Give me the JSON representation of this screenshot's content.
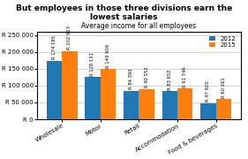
{
  "chart_data": {
    "type": "bar",
    "title": "But employees in those three divisions earn the lowest salaries",
    "subtitle": "Average income for all employees",
    "categories": [
      "Wholesale",
      "Motor",
      "Retail",
      "Accommodation",
      "Food & beverages"
    ],
    "series": [
      {
        "name": "2012",
        "values": [
          174185,
          126151,
          84393,
          83652,
          47920
        ],
        "value_labels": [
          "R 174 185",
          "R 126 151",
          "R 84 393",
          "R 83 652",
          "R 47 920"
        ]
      },
      {
        "name": "2015",
        "values": [
          202923,
          149909,
          90552,
          91746,
          60161
        ],
        "value_labels": [
          "R 202 923",
          "R 149 909",
          "R 90 552",
          "R 91 746",
          "R 60 161"
        ]
      }
    ],
    "ylim": [
      0,
      260000
    ],
    "yticks": [
      {
        "value": 0,
        "label": "R 0"
      },
      {
        "value": 50000,
        "label": "R 50 000"
      },
      {
        "value": 100000,
        "label": "R 100 000"
      },
      {
        "value": 150000,
        "label": "R 150 000"
      },
      {
        "value": 200000,
        "label": "R 200 000"
      },
      {
        "value": 250000,
        "label": "R 250 000"
      }
    ],
    "grid": true,
    "legend": "upper right",
    "data_labels": true
  }
}
